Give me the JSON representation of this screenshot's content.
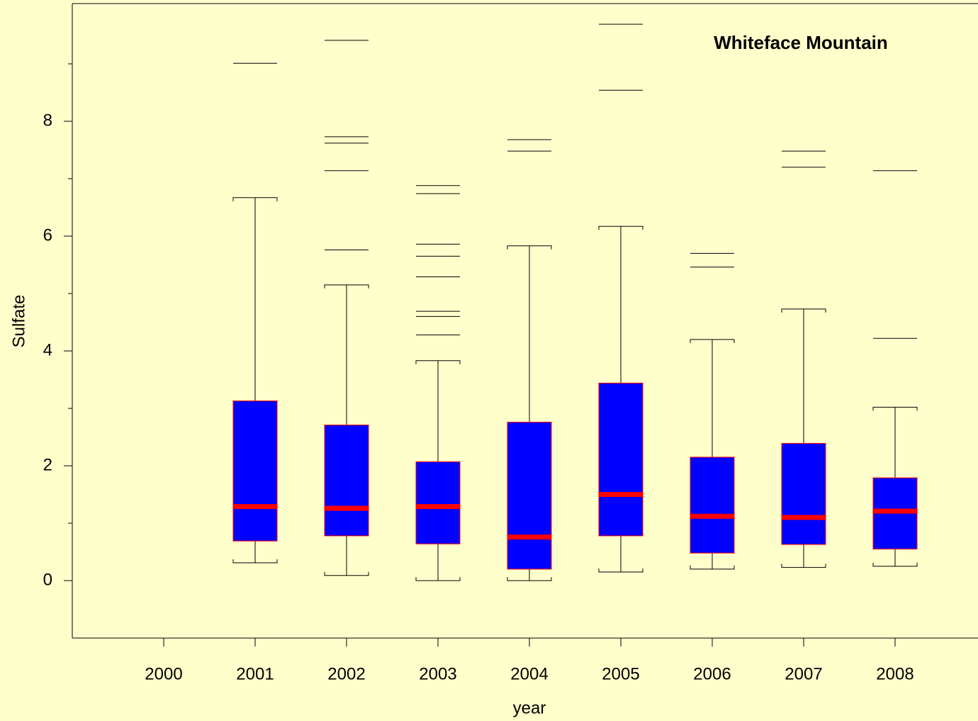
{
  "chart_data": {
    "type": "box",
    "title": "Whiteface Mountain",
    "x_label": "year",
    "y_label": "Sulfate",
    "categories": [
      "2000",
      "2001",
      "2002",
      "2003",
      "2004",
      "2005",
      "2006",
      "2007",
      "2008"
    ],
    "low": [
      null,
      0.31,
      0.09,
      0,
      0,
      0.15,
      0.2,
      0.23,
      0.25
    ],
    "q1": [
      null,
      0.69,
      0.78,
      0.64,
      0.2,
      0.78,
      0.48,
      0.63,
      0.55
    ],
    "median": [
      null,
      1.29,
      1.26,
      1.29,
      0.76,
      1.5,
      1.12,
      1.1,
      1.21
    ],
    "q3": [
      null,
      3.13,
      2.71,
      2.07,
      2.76,
      3.44,
      2.15,
      2.39,
      1.79
    ],
    "high": [
      null,
      6.67,
      5.15,
      3.83,
      5.83,
      6.17,
      4.2,
      4.73,
      3.02
    ],
    "outliers": [
      [],
      [
        9.01
      ],
      [
        5.76,
        7.14,
        7.62,
        7.73,
        9.41
      ],
      [
        4.28,
        4.6,
        4.69,
        5.29,
        5.65,
        5.86,
        6.74,
        6.88
      ],
      [
        7.48,
        7.68
      ],
      [
        8.54,
        9.69
      ],
      [
        5.46,
        5.7
      ],
      [
        7.2,
        7.48
      ],
      [
        4.22,
        7.14
      ]
    ],
    "box_color": "#0000ff",
    "median_color": "#ff0000",
    "title_color": "#0000ff",
    "ylim": [
      -1,
      10.05
    ],
    "yticks": [
      0,
      2,
      4,
      6,
      8
    ],
    "yminorticks": [
      1,
      3,
      5,
      7,
      9
    ]
  }
}
